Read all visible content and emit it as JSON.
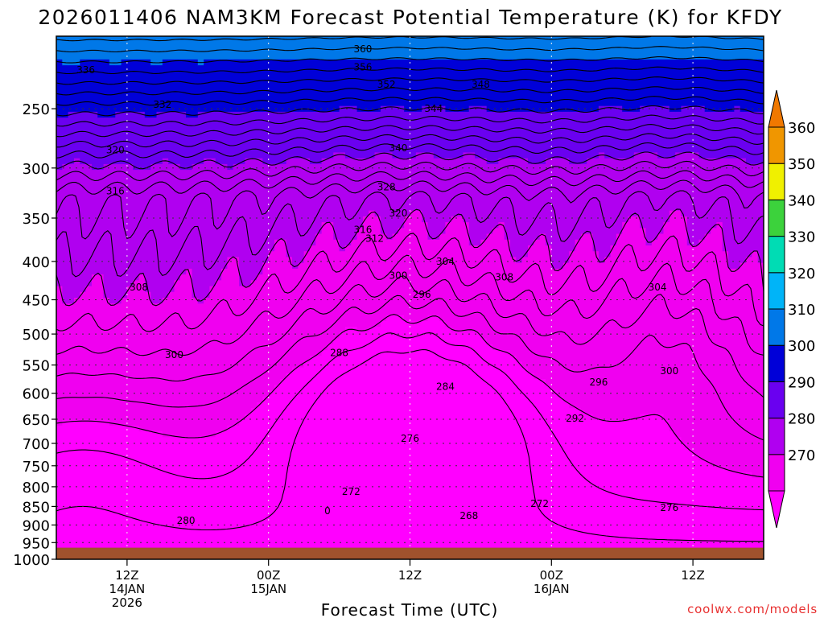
{
  "chart_data": {
    "type": "heatmap",
    "title": "2026011406 NAM3KM Forecast Potential Temperature (K) for KFDY",
    "xlabel": "Forecast Time (UTC)",
    "ylabel": "",
    "x_ticks": [
      {
        "hour": 6,
        "lines": [
          "12Z",
          "14JAN",
          "2026"
        ]
      },
      {
        "hour": 18,
        "lines": [
          "00Z",
          "15JAN"
        ]
      },
      {
        "hour": 30,
        "lines": [
          "12Z"
        ]
      },
      {
        "hour": 42,
        "lines": [
          "00Z",
          "16JAN"
        ]
      },
      {
        "hour": 54,
        "lines": [
          "12Z"
        ]
      }
    ],
    "xlim": [
      0,
      60
    ],
    "y_ticks": [
      250,
      300,
      350,
      400,
      450,
      500,
      550,
      600,
      650,
      700,
      750,
      800,
      850,
      900,
      950,
      1000
    ],
    "ylim": [
      200,
      1000
    ],
    "y_scale": "log-pressure",
    "grid": true,
    "ground_level_hpa": 965,
    "ground_color": "#A0522D",
    "colorbar": {
      "ticks": [
        270,
        280,
        290,
        300,
        310,
        320,
        330,
        340,
        350,
        360
      ],
      "colors": [
        "#f000f0",
        "#b000f0",
        "#6a00f0",
        "#0000d8",
        "#0078e8",
        "#00b4f8",
        "#00dcb4",
        "#3cd23c",
        "#f0f000",
        "#f09600"
      ],
      "end_colors": {
        "low": "#ff00ff",
        "high": "#f07800"
      }
    },
    "contour_interval": 2,
    "contour_labels": [
      {
        "value": 360,
        "hour": 26,
        "hpa": 208
      },
      {
        "value": 356,
        "hour": 26,
        "hpa": 220
      },
      {
        "value": 352,
        "hour": 28,
        "hpa": 232
      },
      {
        "value": 348,
        "hour": 36,
        "hpa": 232
      },
      {
        "value": 344,
        "hour": 32,
        "hpa": 250
      },
      {
        "value": 340,
        "hour": 29,
        "hpa": 282
      },
      {
        "value": 336,
        "hour": 2.5,
        "hpa": 222
      },
      {
        "value": 332,
        "hour": 9,
        "hpa": 247
      },
      {
        "value": 320,
        "hour": 5,
        "hpa": 284
      },
      {
        "value": 316,
        "hour": 5,
        "hpa": 322
      },
      {
        "value": 328,
        "hour": 28,
        "hpa": 318
      },
      {
        "value": 320,
        "hour": 29,
        "hpa": 345
      },
      {
        "value": 316,
        "hour": 26,
        "hpa": 363
      },
      {
        "value": 312,
        "hour": 27,
        "hpa": 373
      },
      {
        "value": 304,
        "hour": 33,
        "hpa": 400
      },
      {
        "value": 308,
        "hour": 38,
        "hpa": 420
      },
      {
        "value": 304,
        "hour": 51,
        "hpa": 433
      },
      {
        "value": 300,
        "hour": 29,
        "hpa": 418
      },
      {
        "value": 296,
        "hour": 31,
        "hpa": 443
      },
      {
        "value": 308,
        "hour": 7,
        "hpa": 433
      },
      {
        "value": 300,
        "hour": 10,
        "hpa": 533
      },
      {
        "value": 288,
        "hour": 24,
        "hpa": 530
      },
      {
        "value": 284,
        "hour": 33,
        "hpa": 588
      },
      {
        "value": 296,
        "hour": 46,
        "hpa": 580
      },
      {
        "value": 300,
        "hour": 52,
        "hpa": 560
      },
      {
        "value": 292,
        "hour": 44,
        "hpa": 648
      },
      {
        "value": 276,
        "hour": 30,
        "hpa": 690
      },
      {
        "value": 272,
        "hour": 25,
        "hpa": 812
      },
      {
        "value": 272,
        "hour": 41,
        "hpa": 843
      },
      {
        "value": 276,
        "hour": 52,
        "hpa": 853
      },
      {
        "value": 280,
        "hour": 11,
        "hpa": 888
      },
      {
        "value": 268,
        "hour": 35,
        "hpa": 875
      },
      {
        "value": 0,
        "hour": 23,
        "hpa": 862
      }
    ]
  },
  "watermark": "coolwx.com/models"
}
